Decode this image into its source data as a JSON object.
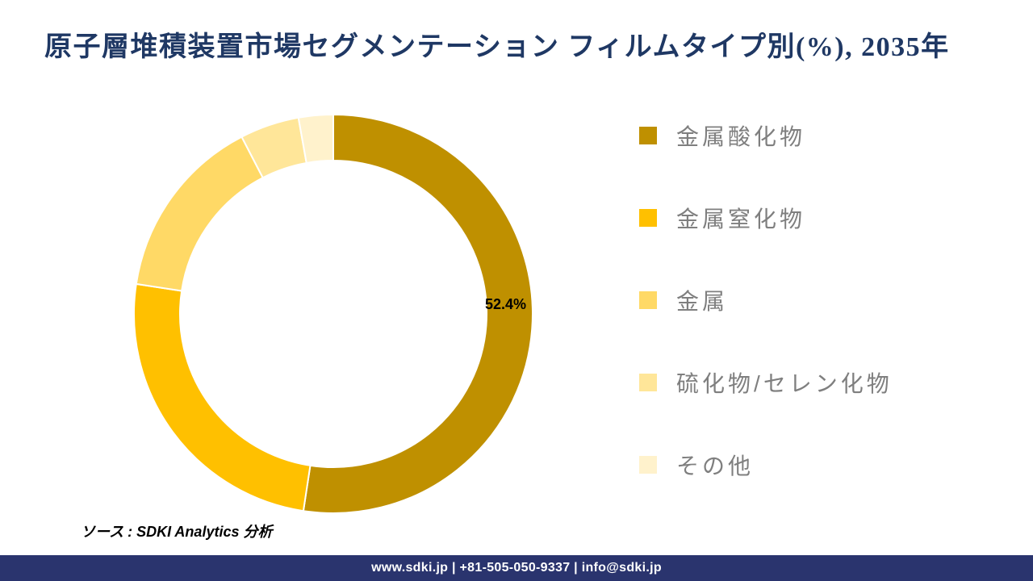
{
  "page": {
    "title": "原子層堆積装置市場セグメンテーション フィルムタイプ別(%), 2035年",
    "source_note": "ソース : SDKI Analytics 分析",
    "footer_text": "www.sdki.jp | +81-505-050-9337 | info@sdki.jp"
  },
  "colors": {
    "title_text": "#1F3864",
    "legend_text": "#7F7F7F",
    "data_label_text": "#000000",
    "footer_bg": "#2A346E",
    "footer_text": "#FFFFFF",
    "background": "#FFFFFF",
    "segment_separator": "#FFFFFF"
  },
  "chart_data": {
    "type": "pie",
    "subtype": "donut",
    "title": "原子層堆積装置市場セグメンテーション フィルムタイプ別(%), 2035年",
    "unit": "%",
    "year": "2035年",
    "categories": [
      "金属酸化物",
      "金属窒化物",
      "金属",
      "硫化物/セレン化物",
      "その他"
    ],
    "values": [
      52.4,
      25.0,
      15.0,
      4.8,
      2.8
    ],
    "colors": [
      "#BF9000",
      "#FFC000",
      "#FFD966",
      "#FFE699",
      "#FFF2CC"
    ],
    "data_labels": [
      {
        "segment_index": 0,
        "text": "52.4%"
      }
    ],
    "legend_position": "right",
    "start_angle_deg": 0,
    "clockwise": true,
    "inner_radius_ratio": 0.77,
    "grid": false
  }
}
